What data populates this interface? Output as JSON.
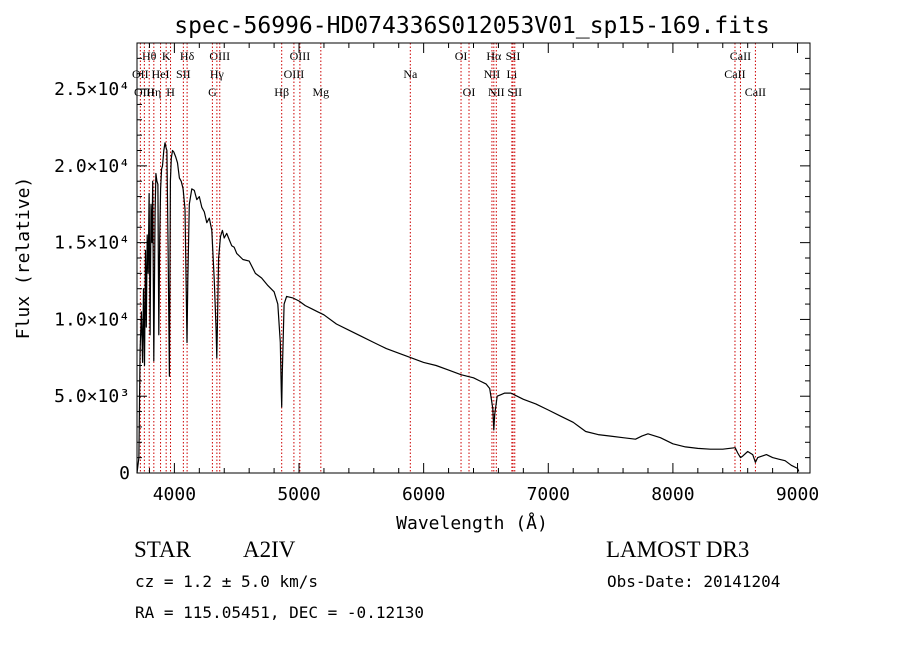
{
  "chart_data": {
    "type": "line",
    "title": "spec-56996-HD074336S012053V01_sp15-169.fits",
    "xlabel": "Wavelength (Å)",
    "ylabel": "Flux (relative)",
    "xlim": [
      3700,
      9100
    ],
    "ylim": [
      0,
      28000
    ],
    "x_ticks": [
      {
        "value": 4000,
        "label": "4000"
      },
      {
        "value": 5000,
        "label": "5000"
      },
      {
        "value": 6000,
        "label": "6000"
      },
      {
        "value": 7000,
        "label": "7000"
      },
      {
        "value": 8000,
        "label": "8000"
      },
      {
        "value": 9000,
        "label": "9000"
      }
    ],
    "y_ticks": [
      {
        "value": 0,
        "label": "0"
      },
      {
        "value": 5000,
        "label": "5.0×10³"
      },
      {
        "value": 10000,
        "label": "1.0×10⁴"
      },
      {
        "value": 15000,
        "label": "1.5×10⁴"
      },
      {
        "value": 20000,
        "label": "2.0×10⁴"
      },
      {
        "value": 25000,
        "label": "2.5×10⁴"
      }
    ],
    "series": [
      {
        "name": "spectrum",
        "color": "#000000",
        "x": [
          3700,
          3715,
          3725,
          3735,
          3745,
          3752,
          3760,
          3768,
          3775,
          3782,
          3790,
          3797,
          3805,
          3812,
          3820,
          3826,
          3835,
          3845,
          3852,
          3860,
          3868,
          3875,
          3882,
          3889,
          3897,
          3905,
          3915,
          3925,
          3933,
          3940,
          3950,
          3960,
          3968,
          3975,
          3985,
          3995,
          4010,
          4025,
          4040,
          4055,
          4070,
          4085,
          4095,
          4101,
          4108,
          4120,
          4140,
          4160,
          4180,
          4200,
          4220,
          4240,
          4260,
          4280,
          4300,
          4320,
          4335,
          4340,
          4345,
          4355,
          4370,
          4385,
          4400,
          4420,
          4440,
          4460,
          4480,
          4500,
          4550,
          4600,
          4650,
          4700,
          4750,
          4800,
          4830,
          4850,
          4858,
          4861,
          4866,
          4880,
          4900,
          4950,
          5000,
          5050,
          5100,
          5150,
          5200,
          5300,
          5400,
          5500,
          5600,
          5700,
          5800,
          5900,
          6000,
          6100,
          6200,
          6300,
          6400,
          6450,
          6500,
          6530,
          6555,
          6563,
          6570,
          6590,
          6620,
          6650,
          6700,
          6750,
          6800,
          6900,
          7000,
          7100,
          7200,
          7250,
          7300,
          7400,
          7500,
          7600,
          7700,
          7750,
          7800,
          7900,
          8000,
          8100,
          8200,
          8300,
          8400,
          8500,
          8520,
          8542,
          8560,
          8600,
          8640,
          8662,
          8680,
          8750,
          8800,
          8850,
          8900,
          8950,
          9000,
          9010
        ],
        "y": [
          0,
          1000,
          8000,
          10500,
          7200,
          12000,
          7000,
          14500,
          9500,
          15500,
          13000,
          18200,
          9000,
          17500,
          15000,
          19000,
          7300,
          17000,
          19500,
          19000,
          18800,
          9000,
          15200,
          18500,
          19800,
          20000,
          21000,
          21500,
          21200,
          21000,
          14000,
          6300,
          19000,
          20500,
          21000,
          20900,
          20600,
          20200,
          19200,
          19000,
          18500,
          17200,
          12000,
          8500,
          12500,
          17500,
          18500,
          18400,
          17800,
          18000,
          17300,
          17000,
          16300,
          16600,
          15800,
          12500,
          9300,
          7500,
          9500,
          14000,
          15400,
          15800,
          15300,
          15600,
          15200,
          14800,
          14700,
          14300,
          13900,
          13800,
          13000,
          12700,
          12200,
          11800,
          11000,
          8500,
          5300,
          4300,
          6500,
          11000,
          11500,
          11400,
          11200,
          10900,
          10700,
          10500,
          10300,
          9700,
          9300,
          8900,
          8500,
          8100,
          7800,
          7500,
          7200,
          7000,
          6700,
          6400,
          6200,
          6000,
          5800,
          5500,
          4200,
          2800,
          3800,
          5000,
          5100,
          5200,
          5200,
          5000,
          4800,
          4500,
          4100,
          3700,
          3300,
          3000,
          2700,
          2500,
          2400,
          2300,
          2200,
          2400,
          2550,
          2300,
          1900,
          1700,
          1600,
          1550,
          1550,
          1650,
          1300,
          1000,
          1100,
          1400,
          1200,
          700,
          1000,
          1200,
          1000,
          900,
          800,
          500,
          300,
          100
        ]
      }
    ],
    "lines": [
      {
        "label": "Hθ",
        "wavelength": 3798,
        "row": 0
      },
      {
        "label": "OII",
        "wavelength": 3727,
        "row": 1
      },
      {
        "label": "OIII",
        "wavelength": 3759,
        "row": 2
      },
      {
        "label": "Hη",
        "wavelength": 3835,
        "row": 2
      },
      {
        "label": "K",
        "wavelength": 3934,
        "row": 0
      },
      {
        "label": "HeI",
        "wavelength": 3889,
        "row": 1
      },
      {
        "label": "H",
        "wavelength": 3969,
        "row": 2
      },
      {
        "label": "Hδ",
        "wavelength": 4102,
        "row": 0
      },
      {
        "label": "SII",
        "wavelength": 4072,
        "row": 1
      },
      {
        "label": "OIII",
        "wavelength": 4364,
        "row": 0
      },
      {
        "label": "Hγ",
        "wavelength": 4341,
        "row": 1
      },
      {
        "label": "G",
        "wavelength": 4305,
        "row": 2
      },
      {
        "label": "OIII",
        "wavelength": 5007,
        "row": 0
      },
      {
        "label": "OIII",
        "wavelength": 4959,
        "row": 1
      },
      {
        "label": "Hβ",
        "wavelength": 4861,
        "row": 2
      },
      {
        "label": "Mg",
        "wavelength": 5175,
        "row": 2
      },
      {
        "label": "Na",
        "wavelength": 5893,
        "row": 1
      },
      {
        "label": "OI",
        "wavelength": 6300,
        "row": 0
      },
      {
        "label": "OI",
        "wavelength": 6364,
        "row": 2
      },
      {
        "label": "Hα",
        "wavelength": 6563,
        "row": 0
      },
      {
        "label": "NII",
        "wavelength": 6548,
        "row": 1
      },
      {
        "label": "NII",
        "wavelength": 6583,
        "row": 2
      },
      {
        "label": "SII",
        "wavelength": 6717,
        "row": 0
      },
      {
        "label": "Li",
        "wavelength": 6708,
        "row": 1
      },
      {
        "label": "SII",
        "wavelength": 6731,
        "row": 2
      },
      {
        "label": "CaII",
        "wavelength": 8542,
        "row": 0
      },
      {
        "label": "CaII",
        "wavelength": 8498,
        "row": 1
      },
      {
        "label": "CaII",
        "wavelength": 8662,
        "row": 2
      }
    ]
  },
  "info": {
    "object_class": "STAR",
    "subclass": "A2IV",
    "survey": "LAMOST DR3",
    "cz": "cz = 1.2 ± 5.0 km/s",
    "obs_date": "Obs-Date: 20141204",
    "radec": "RA = 115.05451, DEC =  -0.12130"
  },
  "colors": {
    "spectrum": "#000000",
    "line_marker": "#cc0000",
    "axis": "#000000"
  }
}
